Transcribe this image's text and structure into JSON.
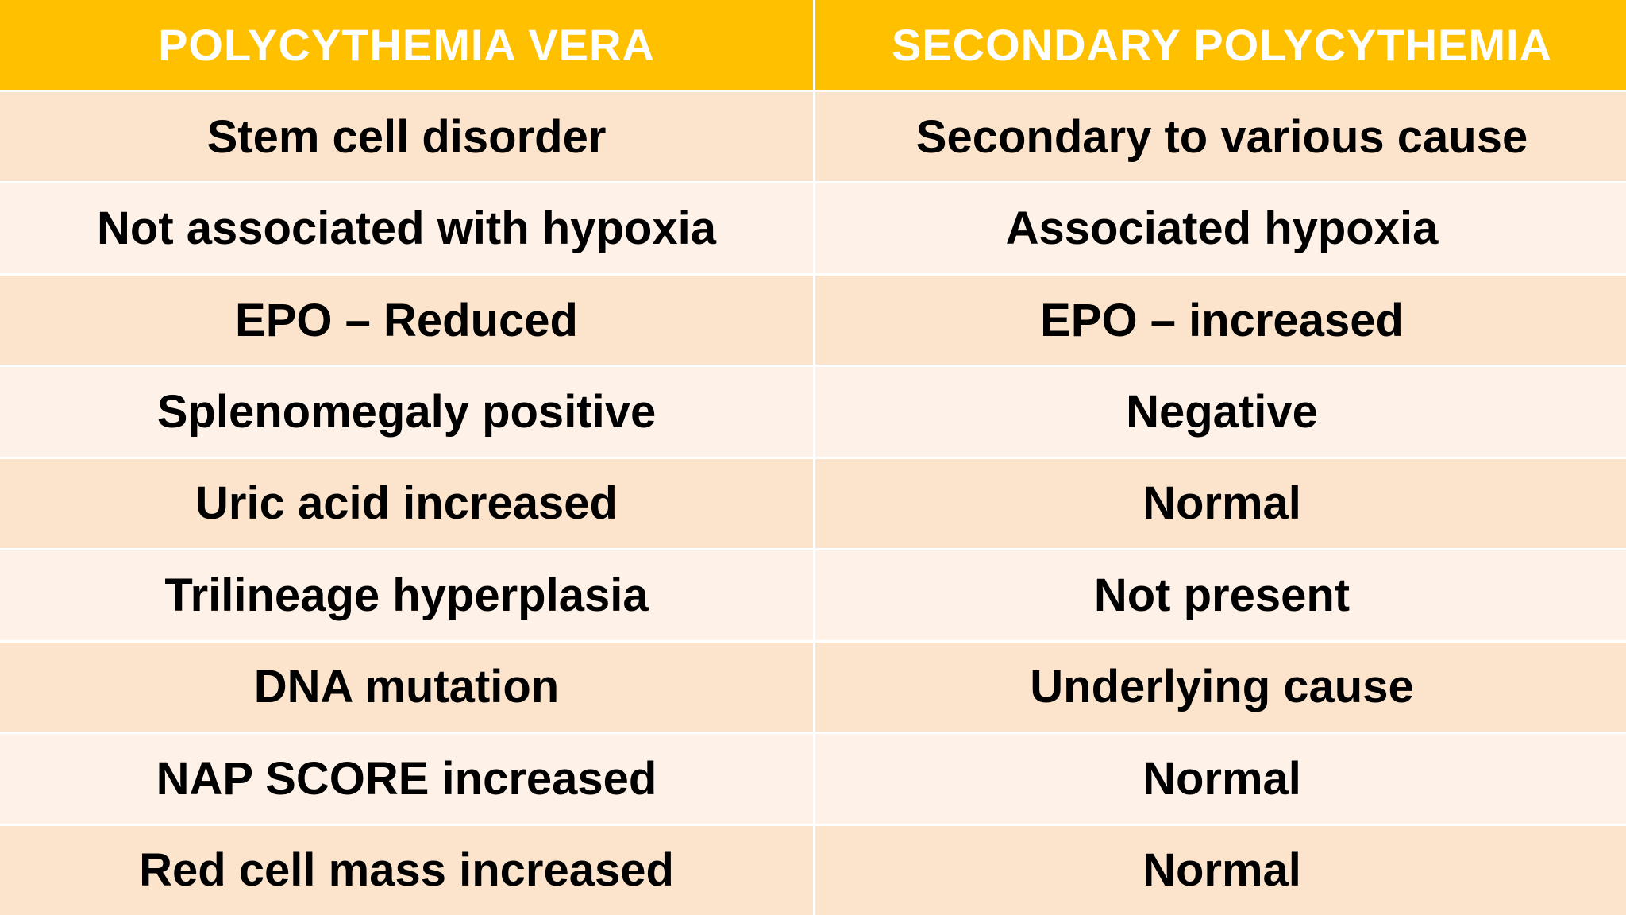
{
  "table": {
    "headers": [
      "POLYCYTHEMIA VERA",
      "SECONDARY POLYCYTHEMIA"
    ],
    "rows": [
      [
        "Stem cell disorder",
        "Secondary to various cause"
      ],
      [
        "Not associated with hypoxia",
        "Associated hypoxia"
      ],
      [
        "EPO – Reduced",
        "EPO – increased"
      ],
      [
        "Splenomegaly positive",
        "Negative"
      ],
      [
        "Uric acid increased",
        "Normal"
      ],
      [
        "Trilineage hyperplasia",
        "Not present"
      ],
      [
        "DNA mutation",
        "Underlying cause"
      ],
      [
        "NAP SCORE increased",
        "Normal"
      ],
      [
        "Red cell mass increased",
        "Normal"
      ]
    ]
  },
  "colors": {
    "header_bg": "#FFC000",
    "header_text": "#FFFFFF",
    "row_dark": "#FCE4CC",
    "row_light": "#FEF2E8"
  }
}
